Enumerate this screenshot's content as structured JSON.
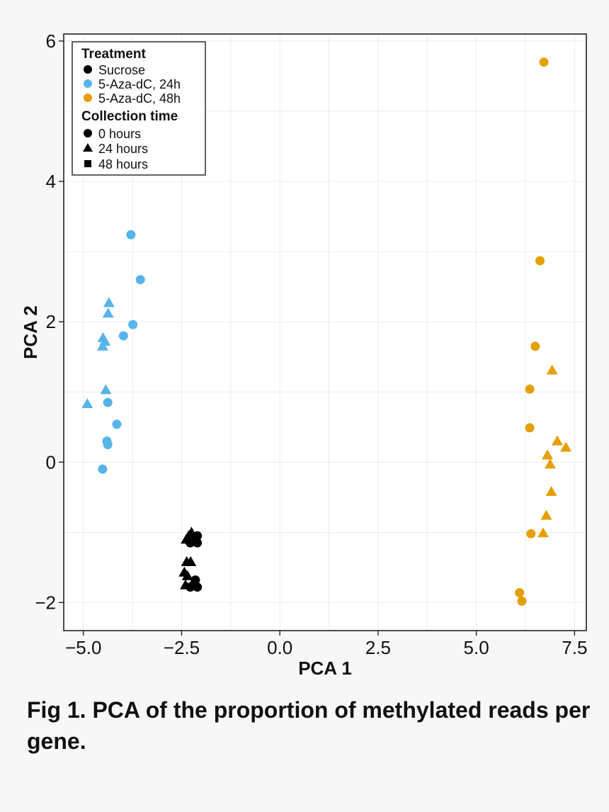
{
  "chart_data": {
    "type": "scatter",
    "title": "",
    "xlabel": "PCA 1",
    "ylabel": "PCA 2",
    "xlim": [
      -5.5,
      7.8
    ],
    "ylim": [
      -2.4,
      6.1
    ],
    "xticks": [
      -5.0,
      -2.5,
      0.0,
      2.5,
      5.0,
      7.5
    ],
    "xtick_labels": [
      "−5.0",
      "−2.5",
      "0.0",
      "2.5",
      "5.0",
      "7.5"
    ],
    "yticks": [
      -2,
      0,
      2,
      4,
      6
    ],
    "ytick_labels": [
      "−2",
      "0",
      "2",
      "4",
      "6"
    ],
    "grid": true,
    "legend": {
      "placement": "top-left",
      "treatment_title": "Treatment",
      "treatments": [
        {
          "label": "Sucrose",
          "color": "#000000"
        },
        {
          "label": "5-Aza-dC, 24h",
          "color": "#56b4e9"
        },
        {
          "label": "5-Aza-dC, 48h",
          "color": "#e69f00"
        }
      ],
      "time_title": "Collection time",
      "times": [
        {
          "label": "0 hours",
          "shape": "circle"
        },
        {
          "label": "24 hours",
          "shape": "triangle"
        },
        {
          "label": "48 hours",
          "shape": "square"
        }
      ]
    },
    "series": [
      {
        "name": "5-Aza-dC, 24h",
        "color": "#56b4e9",
        "points": [
          {
            "x": -3.79,
            "y": 3.24,
            "shape": "circle"
          },
          {
            "x": -3.55,
            "y": 2.6,
            "shape": "circle"
          },
          {
            "x": -3.74,
            "y": 1.96,
            "shape": "circle"
          },
          {
            "x": -3.98,
            "y": 1.8,
            "shape": "circle"
          },
          {
            "x": -4.38,
            "y": 0.85,
            "shape": "circle"
          },
          {
            "x": -4.15,
            "y": 0.54,
            "shape": "circle"
          },
          {
            "x": -4.4,
            "y": 0.3,
            "shape": "circle"
          },
          {
            "x": -4.38,
            "y": 0.25,
            "shape": "circle"
          },
          {
            "x": -4.51,
            "y": -0.1,
            "shape": "circle"
          },
          {
            "x": -4.35,
            "y": 2.27,
            "shape": "triangle"
          },
          {
            "x": -4.37,
            "y": 2.12,
            "shape": "triangle"
          },
          {
            "x": -4.5,
            "y": 1.77,
            "shape": "triangle"
          },
          {
            "x": -4.45,
            "y": 1.72,
            "shape": "triangle"
          },
          {
            "x": -4.51,
            "y": 1.65,
            "shape": "triangle"
          },
          {
            "x": -4.43,
            "y": 1.03,
            "shape": "triangle"
          },
          {
            "x": -4.9,
            "y": 0.83,
            "shape": "triangle"
          }
        ]
      },
      {
        "name": "Sucrose",
        "color": "#000000",
        "points": [
          {
            "x": -2.1,
            "y": -1.05,
            "shape": "circle"
          },
          {
            "x": -2.2,
            "y": -1.1,
            "shape": "circle"
          },
          {
            "x": -2.28,
            "y": -1.15,
            "shape": "circle"
          },
          {
            "x": -2.1,
            "y": -1.15,
            "shape": "circle"
          },
          {
            "x": -2.15,
            "y": -1.68,
            "shape": "circle"
          },
          {
            "x": -2.2,
            "y": -1.75,
            "shape": "circle"
          },
          {
            "x": -2.28,
            "y": -1.78,
            "shape": "circle"
          },
          {
            "x": -2.1,
            "y": -1.78,
            "shape": "circle"
          },
          {
            "x": -2.25,
            "y": -1.0,
            "shape": "triangle"
          },
          {
            "x": -2.32,
            "y": -1.05,
            "shape": "triangle"
          },
          {
            "x": -2.38,
            "y": -1.1,
            "shape": "triangle"
          },
          {
            "x": -2.37,
            "y": -1.42,
            "shape": "triangle"
          },
          {
            "x": -2.27,
            "y": -1.42,
            "shape": "triangle"
          },
          {
            "x": -2.43,
            "y": -1.57,
            "shape": "triangle"
          },
          {
            "x": -2.35,
            "y": -1.62,
            "shape": "triangle"
          },
          {
            "x": -2.4,
            "y": -1.75,
            "shape": "triangle"
          }
        ]
      },
      {
        "name": "5-Aza-dC, 48h",
        "color": "#e69f00",
        "points": [
          {
            "x": 6.72,
            "y": 5.7,
            "shape": "circle"
          },
          {
            "x": 6.62,
            "y": 2.87,
            "shape": "circle"
          },
          {
            "x": 6.5,
            "y": 1.65,
            "shape": "circle"
          },
          {
            "x": 6.36,
            "y": 1.04,
            "shape": "circle"
          },
          {
            "x": 6.36,
            "y": 0.49,
            "shape": "circle"
          },
          {
            "x": 6.39,
            "y": -1.02,
            "shape": "circle"
          },
          {
            "x": 6.1,
            "y": -1.86,
            "shape": "circle"
          },
          {
            "x": 6.16,
            "y": -1.98,
            "shape": "circle"
          },
          {
            "x": 6.93,
            "y": 1.31,
            "shape": "triangle"
          },
          {
            "x": 7.06,
            "y": 0.3,
            "shape": "triangle"
          },
          {
            "x": 7.28,
            "y": 0.21,
            "shape": "triangle"
          },
          {
            "x": 6.81,
            "y": 0.1,
            "shape": "triangle"
          },
          {
            "x": 6.88,
            "y": -0.03,
            "shape": "triangle"
          },
          {
            "x": 6.91,
            "y": -0.42,
            "shape": "triangle"
          },
          {
            "x": 6.78,
            "y": -0.76,
            "shape": "triangle"
          },
          {
            "x": 6.7,
            "y": -1.01,
            "shape": "triangle"
          }
        ]
      }
    ]
  },
  "caption": {
    "text": "Fig 1. PCA of the proportion of methylated reads per gene."
  }
}
